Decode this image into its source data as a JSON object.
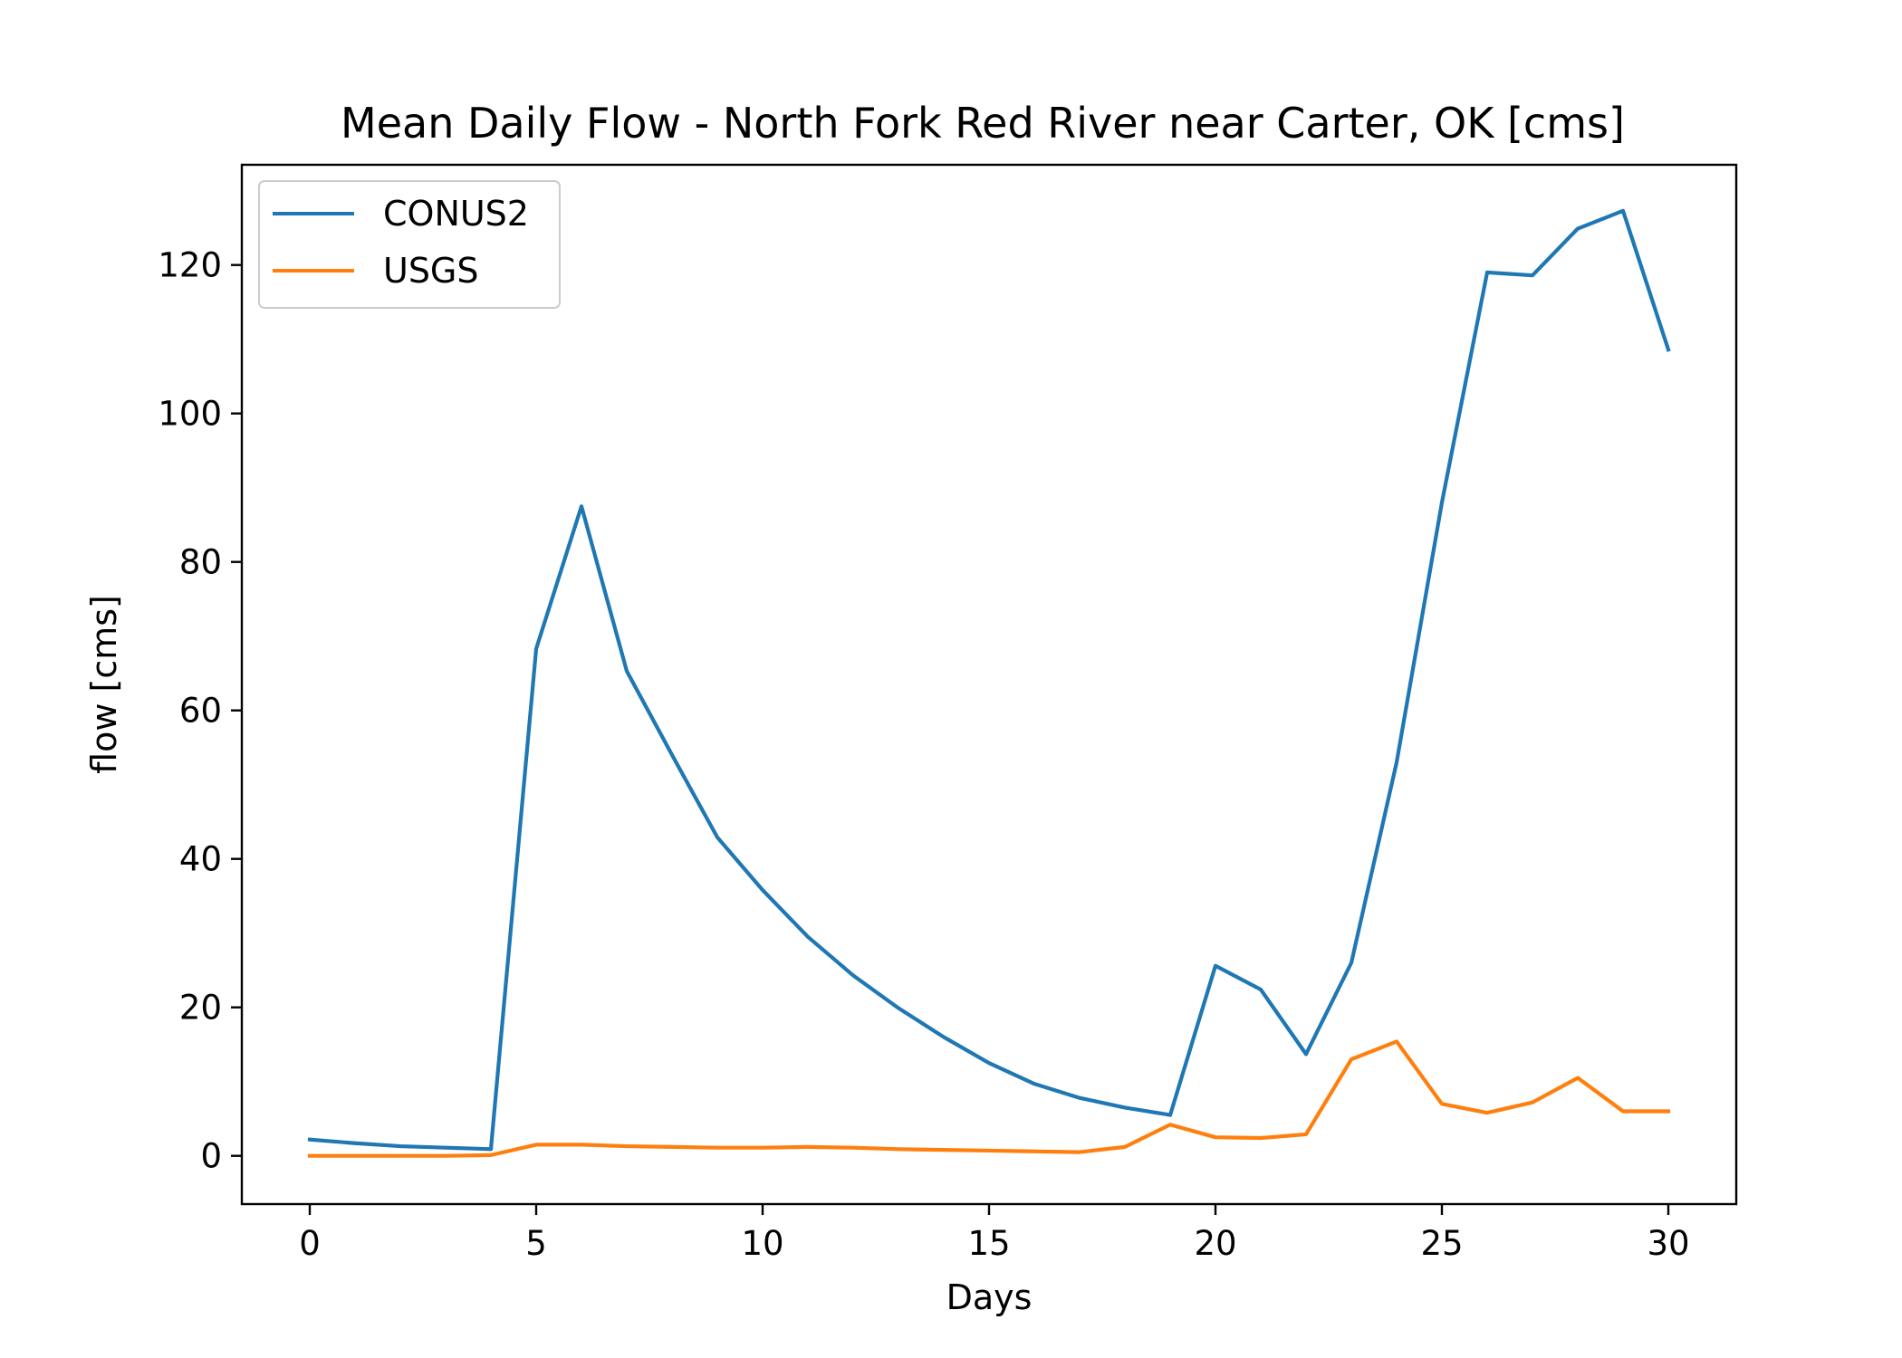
{
  "chart_data": {
    "type": "line",
    "title": "Mean Daily Flow - North Fork Red River near Carter, OK [cms]",
    "xlabel": "Days",
    "ylabel": "flow [cms]",
    "xlim": [
      -1.5,
      31.5
    ],
    "ylim": [
      -6.5,
      133.5
    ],
    "xticks": [
      0,
      5,
      10,
      15,
      20,
      25,
      30
    ],
    "yticks": [
      0,
      20,
      40,
      60,
      80,
      100,
      120
    ],
    "grid": false,
    "legend_position": "top-left",
    "x": [
      0,
      1,
      2,
      3,
      4,
      5,
      6,
      7,
      8,
      9,
      10,
      11,
      12,
      13,
      14,
      15,
      16,
      17,
      18,
      19,
      20,
      21,
      22,
      23,
      24,
      25,
      26,
      27,
      28,
      29,
      30
    ],
    "series": [
      {
        "name": "CONUS2",
        "color": "#1f77b4",
        "values": [
          2.2,
          1.7,
          1.3,
          1.1,
          0.9,
          68.3,
          87.5,
          65.3,
          54.0,
          42.9,
          35.8,
          29.5,
          24.3,
          19.9,
          16.0,
          12.5,
          9.7,
          7.8,
          6.5,
          5.5,
          25.6,
          22.4,
          13.7,
          26.0,
          53.0,
          88.0,
          119.0,
          118.6,
          124.9,
          127.3,
          108.6
        ]
      },
      {
        "name": "USGS",
        "color": "#ff7f0e",
        "values": [
          0.0,
          0.0,
          0.0,
          0.0,
          0.1,
          1.5,
          1.5,
          1.3,
          1.2,
          1.1,
          1.1,
          1.2,
          1.1,
          0.9,
          0.8,
          0.7,
          0.6,
          0.5,
          1.2,
          4.2,
          2.5,
          2.4,
          2.9,
          13.0,
          15.4,
          7.0,
          5.8,
          7.2,
          10.5,
          6.0,
          6.0
        ]
      }
    ]
  }
}
